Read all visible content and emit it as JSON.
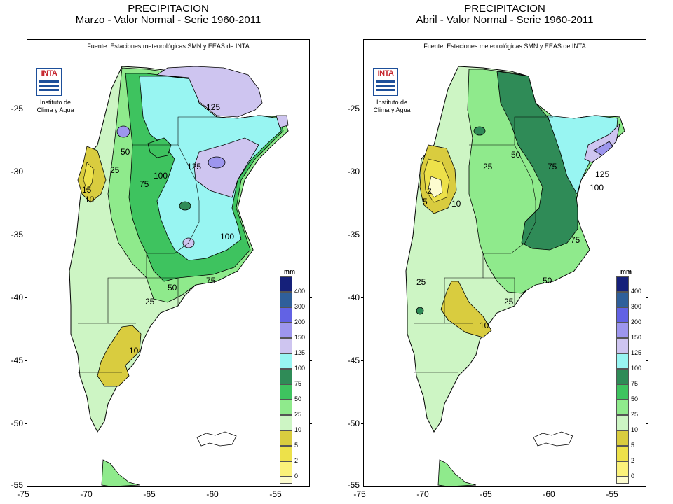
{
  "legend_colors": {
    "c0": "#fdfccf",
    "c2": "#fbf27a",
    "c5": "#ede14a",
    "c10": "#d9cc3f",
    "c25": "#cdf5c4",
    "c50": "#8fea8c",
    "c75": "#3ec35f",
    "c100": "#2f8b57",
    "c125": "#98f5f2",
    "c150": "#cec5f0",
    "c200": "#9d96ee",
    "c300": "#6262e4",
    "c400": "#2f5f9a",
    "cmax": "#15207a"
  },
  "panels": [
    {
      "id": "left",
      "title_line1": "PRECIPITACION",
      "title_line2": "Marzo - Valor Normal - Serie 1960-2011",
      "source": "Fuente: Estaciones meteorológicas SMN y EEAS de INTA",
      "logo_text": "INTA",
      "institute": "Instituto de Clima y Agua",
      "legend_unit": "mm",
      "legend_labels": [
        "400",
        "300",
        "200",
        "150",
        "125",
        "100",
        "75",
        "50",
        "25",
        "10",
        "5",
        "2",
        "0"
      ],
      "y_ticks": [
        "-25",
        "-30",
        "-35",
        "-40",
        "-45",
        "-50",
        "-55"
      ],
      "x_ticks": [
        "-75",
        "-70",
        "-65",
        "-60",
        "-55"
      ],
      "contour_labels": [
        "125",
        "125",
        "100",
        "100",
        "75",
        "75",
        "50",
        "50",
        "25",
        "25",
        "10",
        "10",
        "15"
      ]
    },
    {
      "id": "right",
      "title_line1": "PRECIPITACION",
      "title_line2": "Abril - Valor Normal - Serie 1960-2011",
      "source": "Fuente: Estaciones meteorológicas SMN y EEAS de INTA",
      "logo_text": "INTA",
      "institute": "Instituto de Clima y Agua",
      "legend_unit": "mm",
      "legend_labels": [
        "400",
        "300",
        "200",
        "150",
        "125",
        "100",
        "75",
        "50",
        "25",
        "10",
        "5",
        "2",
        "0"
      ],
      "y_ticks": [
        "-25",
        "-30",
        "-35",
        "-40",
        "-45",
        "-50",
        "-55"
      ],
      "x_ticks": [
        "-75",
        "-70",
        "-65",
        "-60",
        "-55"
      ],
      "contour_labels": [
        "125",
        "100",
        "75",
        "75",
        "50",
        "50",
        "25",
        "25",
        "25",
        "10",
        "10",
        "2",
        "5"
      ]
    }
  ]
}
